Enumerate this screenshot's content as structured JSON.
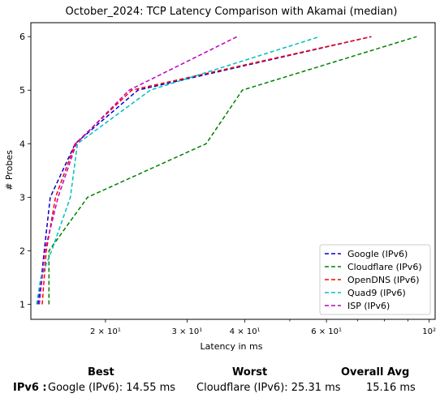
{
  "chart_data": {
    "type": "line",
    "title": "October_2024: TCP Latency Comparison with Akamai (median)",
    "xlabel": "Latency in ms",
    "ylabel": "# Probes",
    "xscale": "log",
    "xlim": [
      13.8,
      103
    ],
    "ylim": [
      0.72,
      6.26
    ],
    "yticks": [
      1,
      2,
      3,
      4,
      5,
      6
    ],
    "xticks": [
      {
        "value": 20,
        "label": "2 × 10¹"
      },
      {
        "value": 30,
        "label": "3 × 10¹"
      },
      {
        "value": 40,
        "label": "4 × 10¹"
      },
      {
        "value": 60,
        "label": "6 × 10¹"
      },
      {
        "value": 100,
        "label": "10²"
      }
    ],
    "grid": false,
    "legend_position": "lower-right",
    "series": [
      {
        "name": "Google (IPv6)",
        "color": "#0000cc",
        "points": [
          [
            14.3,
            1
          ],
          [
            14.55,
            1.5
          ],
          [
            14.75,
            2
          ],
          [
            15.2,
            3
          ],
          [
            17.2,
            4
          ],
          [
            23.5,
            5
          ],
          [
            75,
            6
          ]
        ]
      },
      {
        "name": "Cloudflare (IPv6)",
        "color": "#008000",
        "points": [
          [
            15.1,
            1
          ],
          [
            15.1,
            2
          ],
          [
            18.3,
            3
          ],
          [
            33,
            4
          ],
          [
            39.5,
            5
          ],
          [
            94,
            6
          ]
        ]
      },
      {
        "name": "OpenDNS (IPv6)",
        "color": "#ff0000",
        "points": [
          [
            14.6,
            1
          ],
          [
            14.9,
            2
          ],
          [
            15.6,
            3
          ],
          [
            17.2,
            4
          ],
          [
            22.8,
            5
          ],
          [
            75,
            6
          ]
        ]
      },
      {
        "name": "Quad9 (IPv6)",
        "color": "#00bfbf",
        "points": [
          [
            14.2,
            1
          ],
          [
            14.5,
            1.5
          ],
          [
            15.3,
            2
          ],
          [
            16.8,
            3
          ],
          [
            17.4,
            4
          ],
          [
            25,
            5
          ],
          [
            58,
            6
          ]
        ]
      },
      {
        "name": "ISP (IPv6)",
        "color": "#bf00bf",
        "points": [
          [
            14.4,
            1
          ],
          [
            14.8,
            2
          ],
          [
            15.8,
            3
          ],
          [
            17.3,
            4
          ],
          [
            22.5,
            5
          ],
          [
            38.5,
            6
          ]
        ]
      }
    ]
  },
  "summary": {
    "headers": {
      "best": "Best",
      "worst": "Worst",
      "overall": "Overall Avg"
    },
    "row_label": "IPv6 :",
    "best": "Google (IPv6): 14.55 ms",
    "worst": "Cloudflare (IPv6): 25.31 ms",
    "overall": "15.16 ms"
  }
}
